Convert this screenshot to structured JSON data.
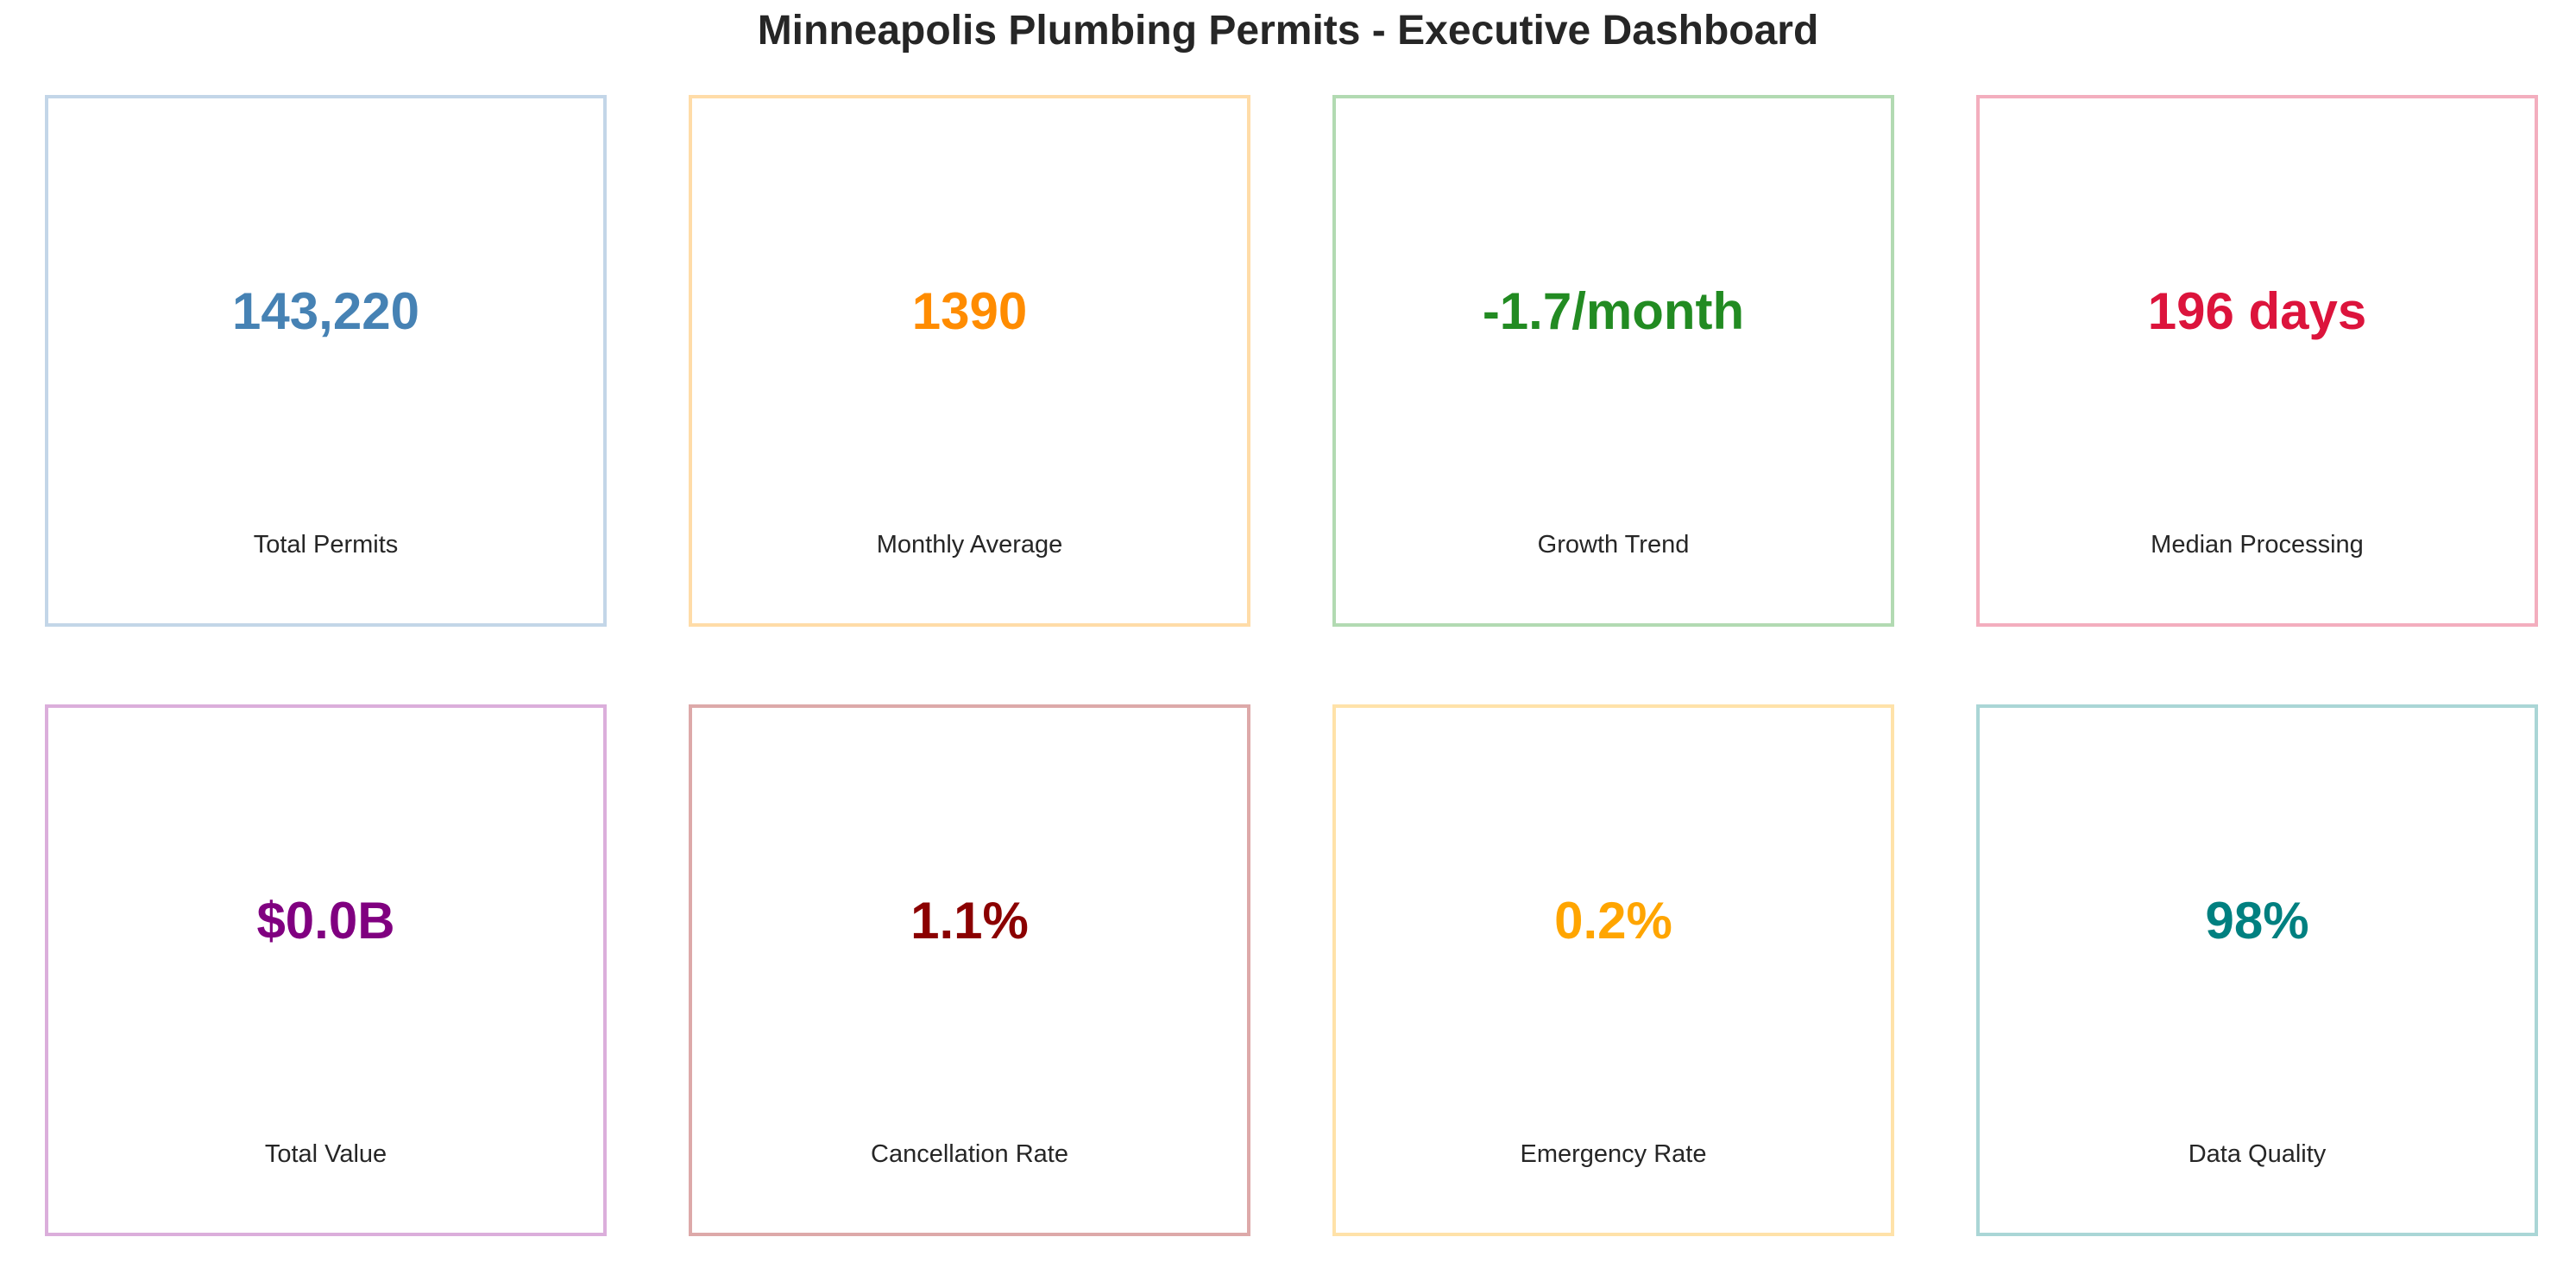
{
  "title": "Minneapolis Plumbing Permits - Executive Dashboard",
  "chart_data": {
    "type": "table",
    "title": "Minneapolis Plumbing Permits - Executive Dashboard",
    "kpis": [
      {
        "label": "Total Permits",
        "value": "143,220",
        "value_color": "#4682B4",
        "border_color": "#C3D6E8"
      },
      {
        "label": "Monthly Average",
        "value": "1390",
        "value_color": "#FF8C00",
        "border_color": "#FFDCA8"
      },
      {
        "label": "Growth Trend",
        "value": "-1.7/month",
        "value_color": "#228B22",
        "border_color": "#B2DAB2"
      },
      {
        "label": "Median Processing",
        "value": "196 days",
        "value_color": "#DC143C",
        "border_color": "#F3AEBE"
      },
      {
        "label": "Total Value",
        "value": "$0.0B",
        "value_color": "#800080",
        "border_color": "#DBAEDB"
      },
      {
        "label": "Cancellation Rate",
        "value": "1.1%",
        "value_color": "#8B0000",
        "border_color": "#DDA9A9"
      },
      {
        "label": "Emergency Rate",
        "value": "0.2%",
        "value_color": "#FFA500",
        "border_color": "#FFE2A9"
      },
      {
        "label": "Data Quality",
        "value": "98%",
        "value_color": "#008080",
        "border_color": "#AAD6D6"
      }
    ]
  }
}
